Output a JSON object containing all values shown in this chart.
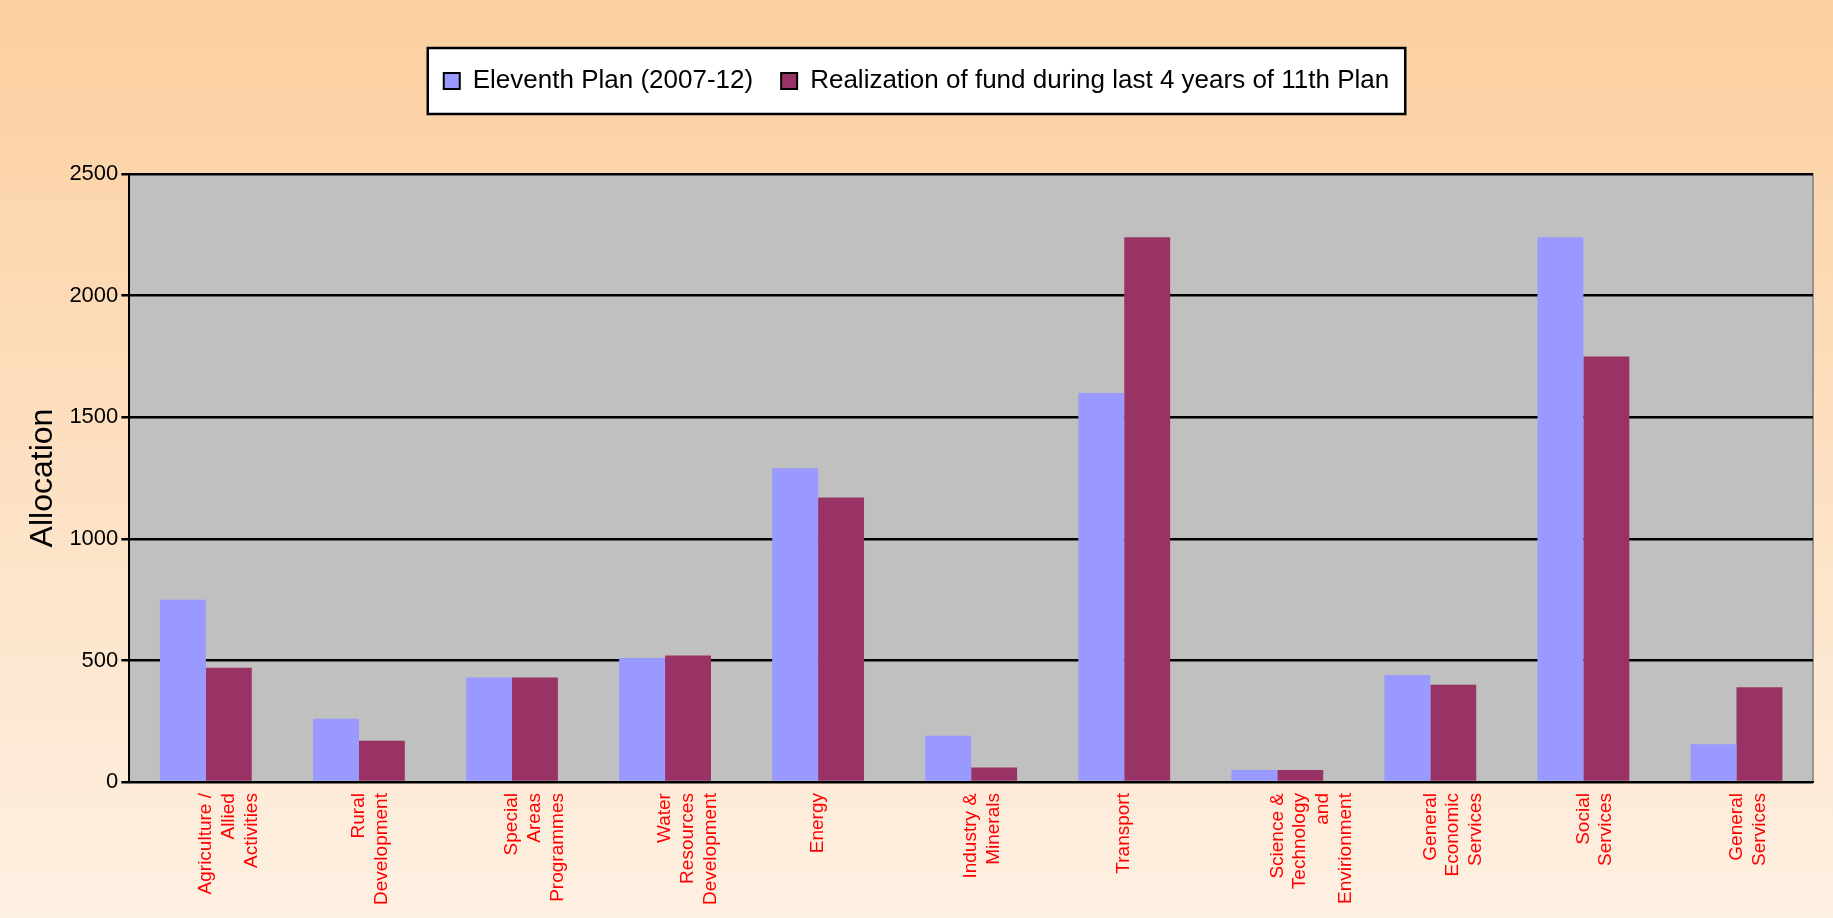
{
  "chart_data": {
    "type": "bar",
    "ylabel": "Allocation",
    "categories": [
      "Agriculture / Allied Activities",
      "Rural Development",
      "Special Areas Programmes",
      "Water Resources Development",
      "Energy",
      "Industry & Minerals",
      "Transport",
      "Science & Technology and Envirionment",
      "General Economic Services",
      "Social Services",
      "General Services"
    ],
    "series": [
      {
        "name": "Eleventh Plan (2007-12)",
        "color": "#9999ff",
        "values": [
          750,
          260,
          430,
          510,
          1290,
          190,
          1600,
          50,
          440,
          2240,
          155
        ]
      },
      {
        "name": "Realization of fund during last 4 years of 11th Plan",
        "color": "#993366",
        "values": [
          470,
          170,
          430,
          520,
          1170,
          60,
          2240,
          50,
          400,
          1750,
          390
        ]
      }
    ],
    "ylim": [
      0,
      2500
    ],
    "yticks": [
      0,
      500,
      1000,
      1500,
      2000,
      2500
    ],
    "grid": "y",
    "legend": "top"
  }
}
